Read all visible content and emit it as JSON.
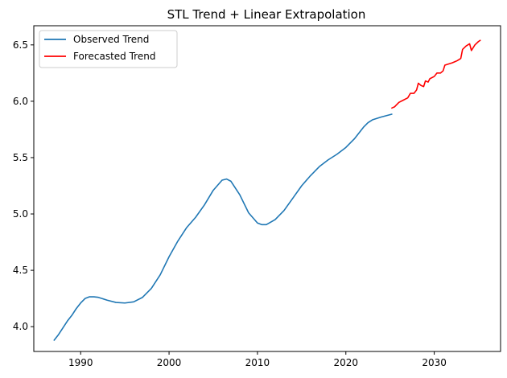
{
  "chart_data": {
    "type": "line",
    "title": "STL Trend + Linear Extrapolation",
    "xlabel": "",
    "ylabel": "",
    "xlim": [
      1984.7,
      2037.5
    ],
    "ylim": [
      3.78,
      6.67
    ],
    "x_ticks": [
      1990,
      2000,
      2010,
      2020,
      2030
    ],
    "y_ticks": [
      4.0,
      4.5,
      5.0,
      5.5,
      6.0,
      6.5
    ],
    "x_tick_labels": [
      "1990",
      "2000",
      "2010",
      "2020",
      "2030"
    ],
    "y_tick_labels": [
      "4.0",
      "4.5",
      "5.0",
      "5.5",
      "6.0",
      "6.5"
    ],
    "grid": false,
    "legend_position": "top-left",
    "series": [
      {
        "name": "Observed Trend",
        "color": "#1f77b4",
        "points": [
          [
            1987.0,
            3.88
          ],
          [
            1987.5,
            3.93
          ],
          [
            1988.0,
            3.99
          ],
          [
            1988.5,
            4.05
          ],
          [
            1989.0,
            4.1
          ],
          [
            1989.5,
            4.16
          ],
          [
            1990.0,
            4.21
          ],
          [
            1990.5,
            4.25
          ],
          [
            1991.0,
            4.265
          ],
          [
            1991.5,
            4.265
          ],
          [
            1992.0,
            4.26
          ],
          [
            1993.0,
            4.235
          ],
          [
            1994.0,
            4.215
          ],
          [
            1995.0,
            4.21
          ],
          [
            1996.0,
            4.22
          ],
          [
            1997.0,
            4.26
          ],
          [
            1998.0,
            4.34
          ],
          [
            1999.0,
            4.46
          ],
          [
            2000.0,
            4.62
          ],
          [
            2001.0,
            4.76
          ],
          [
            2002.0,
            4.88
          ],
          [
            2003.0,
            4.97
          ],
          [
            2004.0,
            5.08
          ],
          [
            2005.0,
            5.21
          ],
          [
            2006.0,
            5.3
          ],
          [
            2006.5,
            5.31
          ],
          [
            2007.0,
            5.29
          ],
          [
            2008.0,
            5.17
          ],
          [
            2009.0,
            5.01
          ],
          [
            2010.0,
            4.92
          ],
          [
            2010.5,
            4.905
          ],
          [
            2011.0,
            4.905
          ],
          [
            2012.0,
            4.95
          ],
          [
            2013.0,
            5.03
          ],
          [
            2014.0,
            5.14
          ],
          [
            2015.0,
            5.25
          ],
          [
            2016.0,
            5.34
          ],
          [
            2017.0,
            5.42
          ],
          [
            2018.0,
            5.48
          ],
          [
            2019.0,
            5.53
          ],
          [
            2020.0,
            5.59
          ],
          [
            2021.0,
            5.67
          ],
          [
            2022.0,
            5.77
          ],
          [
            2022.5,
            5.81
          ],
          [
            2023.0,
            5.835
          ],
          [
            2024.0,
            5.86
          ],
          [
            2025.2,
            5.885
          ]
        ]
      },
      {
        "name": "Forecasted Trend",
        "color": "#ff0000",
        "points": [
          [
            2025.2,
            5.94
          ],
          [
            2025.5,
            5.95
          ],
          [
            2026.0,
            5.99
          ],
          [
            2026.5,
            6.01
          ],
          [
            2027.0,
            6.03
          ],
          [
            2027.3,
            6.07
          ],
          [
            2027.7,
            6.07
          ],
          [
            2028.0,
            6.1
          ],
          [
            2028.2,
            6.16
          ],
          [
            2028.5,
            6.14
          ],
          [
            2028.8,
            6.13
          ],
          [
            2029.0,
            6.18
          ],
          [
            2029.3,
            6.17
          ],
          [
            2029.5,
            6.2
          ],
          [
            2030.0,
            6.22
          ],
          [
            2030.3,
            6.25
          ],
          [
            2030.7,
            6.25
          ],
          [
            2031.0,
            6.27
          ],
          [
            2031.2,
            6.32
          ],
          [
            2031.6,
            6.33
          ],
          [
            2032.0,
            6.34
          ],
          [
            2032.3,
            6.35
          ],
          [
            2032.6,
            6.36
          ],
          [
            2033.0,
            6.38
          ],
          [
            2033.2,
            6.46
          ],
          [
            2033.6,
            6.49
          ],
          [
            2034.0,
            6.51
          ],
          [
            2034.2,
            6.45
          ],
          [
            2034.6,
            6.5
          ],
          [
            2035.0,
            6.53
          ],
          [
            2035.2,
            6.54
          ]
        ]
      }
    ]
  }
}
